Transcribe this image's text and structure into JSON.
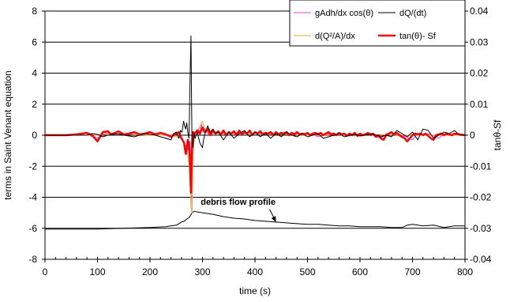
{
  "chart_data": {
    "type": "line",
    "xlabel": "time (s)",
    "ylabel": "terms in Saint Venant equation",
    "y2label": "tanθ-Sf",
    "xlim": [
      0,
      800
    ],
    "ylim": [
      -8,
      8
    ],
    "y2lim": [
      -0.04,
      0.04
    ],
    "xticks": [
      0,
      100,
      200,
      300,
      400,
      500,
      600,
      700,
      800
    ],
    "yticks": [
      -8,
      -6,
      -4,
      -2,
      0,
      2,
      4,
      6,
      8
    ],
    "y2ticks": [
      "-0.04",
      "-0.03",
      "-0.02",
      "-0.01",
      "0",
      "0.01",
      "0.02",
      "0.03",
      "0.04"
    ],
    "grid": "horizontal",
    "legend_position": "top-right",
    "annotation": {
      "text": "debris flow profile",
      "points_to": [
        440,
        -5.6
      ]
    },
    "series": [
      {
        "name": "gAdh/dx cos(θ)",
        "axis": "left",
        "color": "#e040e0",
        "width": 1,
        "x": [
          0,
          60,
          80,
          90,
          100,
          110,
          120,
          130,
          140,
          150,
          160,
          170,
          180,
          190,
          200,
          210,
          220,
          230,
          240,
          250,
          260,
          265,
          270,
          274,
          276,
          278,
          280,
          282,
          285,
          288,
          292,
          295,
          298,
          300,
          302,
          305,
          310,
          315,
          320,
          330,
          340,
          350,
          360,
          370,
          380,
          390,
          400,
          410,
          420,
          430,
          440,
          450,
          460,
          470,
          480,
          490,
          500,
          510,
          520,
          530,
          540,
          550,
          560,
          570,
          580,
          590,
          600,
          610,
          620,
          630,
          640,
          650,
          660,
          670,
          680,
          690,
          700,
          710,
          720,
          730,
          740,
          750,
          760,
          770,
          780,
          790,
          800
        ],
        "y": [
          0,
          0,
          0.1,
          -0.1,
          -0.2,
          0.05,
          0.15,
          0.1,
          0.05,
          0.05,
          0.1,
          0.05,
          0,
          0.1,
          0.05,
          0,
          0.1,
          0.05,
          0,
          0.1,
          -0.1,
          -0.5,
          -1.2,
          -0.6,
          -0.4,
          -1.8,
          -4.5,
          -1.0,
          0.2,
          0.2,
          0.4,
          0.2,
          0.7,
          0.4,
          0.2,
          0.3,
          0.1,
          0.05,
          0.2,
          0.1,
          0.15,
          0.1,
          0.2,
          0.1,
          0.15,
          0.1,
          0.1,
          0.15,
          0.1,
          0.15,
          0.1,
          0.1,
          0.05,
          0.1,
          0.15,
          0.05,
          0.1,
          0.05,
          -0.1,
          0,
          0.1,
          -0.05,
          0.1,
          0,
          -0.05,
          0.05,
          0.1,
          0,
          0.1,
          -0.1,
          -0.2,
          0.1,
          0.1,
          0.1,
          0,
          -0.15,
          -0.3,
          0.1,
          0.05,
          0.1,
          -0.05,
          -0.2,
          0.05,
          0,
          0,
          0,
          0
        ]
      },
      {
        "name": "dQ/(dt)",
        "axis": "left",
        "color": "#000000",
        "width": 1,
        "x": [
          0,
          80,
          90,
          100,
          110,
          120,
          130,
          140,
          150,
          160,
          170,
          180,
          190,
          200,
          210,
          220,
          230,
          240,
          245,
          250,
          255,
          258,
          261,
          264,
          266,
          268,
          270,
          272,
          274,
          275,
          276,
          278,
          279,
          280,
          282,
          284,
          286,
          290,
          295,
          298,
          300,
          302,
          305,
          310,
          315,
          320,
          325,
          330,
          340,
          350,
          360,
          370,
          380,
          390,
          400,
          410,
          420,
          430,
          440,
          450,
          460,
          470,
          480,
          490,
          500,
          510,
          520,
          530,
          540,
          550,
          560,
          570,
          580,
          590,
          600,
          610,
          620,
          630,
          640,
          650,
          660,
          670,
          680,
          690,
          700,
          710,
          720,
          730,
          740,
          750,
          760,
          770,
          780,
          790,
          800
        ],
        "y": [
          0,
          0,
          0.1,
          0.05,
          -0.1,
          0,
          0.05,
          0.1,
          0,
          -0.05,
          -0.1,
          0,
          0.1,
          0.05,
          0,
          -0.1,
          -0.2,
          -0.3,
          0.1,
          0.2,
          -0.2,
          0.3,
          0.2,
          0.9,
          0.6,
          0.4,
          0.8,
          0.2,
          -0.2,
          1.0,
          3.0,
          6.4,
          3.0,
          -0.5,
          -0.8,
          0.1,
          -0.2,
          0.2,
          -0.5,
          -0.7,
          -0.8,
          -0.3,
          0.1,
          0.6,
          0.2,
          0.4,
          0.1,
          0.2,
          -0.3,
          0.2,
          -0.2,
          0.1,
          0.3,
          -0.1,
          0.2,
          -0.1,
          0.1,
          -0.2,
          0.1,
          -0.1,
          0.2,
          0,
          -0.1,
          0.1,
          -0.1,
          0,
          0.1,
          -0.2,
          -0.1,
          0,
          0.1,
          -0.1,
          0,
          0.05,
          -0.05,
          0,
          0.1,
          0,
          -0.1,
          0,
          -0.1,
          0.3,
          0.1,
          -0.1,
          0.2,
          -0.3,
          0.4,
          0.3,
          -0.2,
          0,
          0.2,
          0.1,
          0.3,
          0,
          0
        ]
      },
      {
        "name": "d(Q²/A)/dx",
        "axis": "left",
        "color": "#f0a030",
        "width": 1,
        "x": [
          0,
          100,
          120,
          200,
          240,
          260,
          270,
          275,
          278,
          280,
          282,
          285,
          290,
          300,
          305,
          310,
          320,
          340,
          400,
          500,
          600,
          700,
          800
        ],
        "y": [
          0,
          0,
          0.1,
          0,
          0,
          -0.2,
          -0.8,
          -2.0,
          -4.6,
          -5.0,
          -1.2,
          0.1,
          0.2,
          0.9,
          0.4,
          0.2,
          0.1,
          0.1,
          0.1,
          0,
          0.05,
          0,
          0
        ]
      },
      {
        "name": "tan(θ)- Sf",
        "axis": "left",
        "color": "#ff0000",
        "width": 2.5,
        "x": [
          0,
          40,
          60,
          80,
          90,
          95,
          100,
          105,
          110,
          120,
          125,
          130,
          140,
          150,
          160,
          170,
          180,
          190,
          200,
          210,
          220,
          230,
          240,
          250,
          255,
          260,
          265,
          268,
          270,
          272,
          274,
          276,
          278,
          279,
          280,
          281,
          282,
          285,
          290,
          295,
          300,
          305,
          310,
          315,
          320,
          325,
          330,
          335,
          340,
          345,
          350,
          355,
          360,
          365,
          370,
          375,
          380,
          385,
          390,
          395,
          400,
          405,
          410,
          415,
          420,
          425,
          430,
          435,
          440,
          445,
          450,
          455,
          460,
          465,
          470,
          475,
          480,
          485,
          490,
          495,
          500,
          505,
          510,
          515,
          520,
          525,
          530,
          535,
          540,
          545,
          550,
          555,
          560,
          565,
          570,
          575,
          580,
          585,
          590,
          595,
          600,
          605,
          610,
          615,
          620,
          625,
          630,
          635,
          640,
          645,
          650,
          655,
          660,
          665,
          670,
          675,
          680,
          685,
          690,
          695,
          700,
          705,
          710,
          715,
          720,
          725,
          730,
          735,
          740,
          745,
          750,
          755,
          760,
          765,
          770,
          775,
          780,
          790,
          800
        ],
        "y": [
          0,
          0,
          0.05,
          0.15,
          0,
          -0.2,
          -0.4,
          -0.1,
          0.2,
          0.25,
          0.05,
          0.1,
          0.25,
          0.05,
          0.1,
          0.2,
          0.05,
          0.1,
          0.2,
          0.05,
          0.15,
          0.05,
          -0.1,
          0.1,
          0.2,
          -0.2,
          -0.5,
          -1.2,
          -0.8,
          -0.3,
          -0.5,
          -1.5,
          -3.7,
          -2.0,
          -0.8,
          0.0,
          0.2,
          0.1,
          0.3,
          0.1,
          0.5,
          0.2,
          0.4,
          0.0,
          0.3,
          0.1,
          0.25,
          0.05,
          0.3,
          0.0,
          0.2,
          0.1,
          0.25,
          0.0,
          0.3,
          0.05,
          0.2,
          0.1,
          0.3,
          0.0,
          0.2,
          0.1,
          0.25,
          0.05,
          0.15,
          0.1,
          0.2,
          0.0,
          0.2,
          0.05,
          0.15,
          0.1,
          0.2,
          0.0,
          0.15,
          0.05,
          0.2,
          0.05,
          0.1,
          0.05,
          0.15,
          0.0,
          0.1,
          0.15,
          0.05,
          0.15,
          0.0,
          0.1,
          0.2,
          0.05,
          0.1,
          0.0,
          0.15,
          0.05,
          0.1,
          -0.05,
          0.1,
          0.0,
          0.15,
          -0.05,
          0.1,
          0.0,
          0.05,
          0.15,
          0.0,
          0.1,
          -0.1,
          0.0,
          -0.2,
          -0.3,
          0.0,
          0.1,
          0.2,
          0.05,
          0.15,
          0.0,
          -0.1,
          -0.2,
          -0.4,
          -0.2,
          0.0,
          0.1,
          0.05,
          0.1,
          0.0,
          0.1,
          -0.05,
          -0.2,
          -0.3,
          0.0,
          0.05,
          0.1,
          0.0,
          0.1,
          0.05,
          0.0,
          0.1,
          0.05,
          0
        ]
      },
      {
        "name": "debris flow profile",
        "axis": "left",
        "color": "#000000",
        "width": 1,
        "legend": false,
        "x": [
          0,
          50,
          100,
          150,
          200,
          230,
          250,
          260,
          265,
          270,
          275,
          280,
          285,
          290,
          300,
          320,
          340,
          360,
          380,
          400,
          420,
          440,
          460,
          480,
          500,
          520,
          540,
          560,
          580,
          600,
          620,
          640,
          660,
          680,
          690,
          700,
          720,
          740,
          760,
          780,
          800
        ],
        "y": [
          -6.05,
          -6.05,
          -6.05,
          -6.0,
          -5.95,
          -5.9,
          -5.8,
          -5.6,
          -5.55,
          -5.4,
          -5.3,
          -5.0,
          -4.9,
          -4.95,
          -5.0,
          -5.1,
          -5.25,
          -5.35,
          -5.4,
          -5.5,
          -5.55,
          -5.6,
          -5.65,
          -5.7,
          -5.75,
          -5.75,
          -5.8,
          -5.85,
          -5.85,
          -5.9,
          -5.9,
          -5.9,
          -5.95,
          -5.95,
          -5.8,
          -5.75,
          -5.85,
          -5.8,
          -5.95,
          -5.85,
          -5.85
        ]
      }
    ]
  }
}
